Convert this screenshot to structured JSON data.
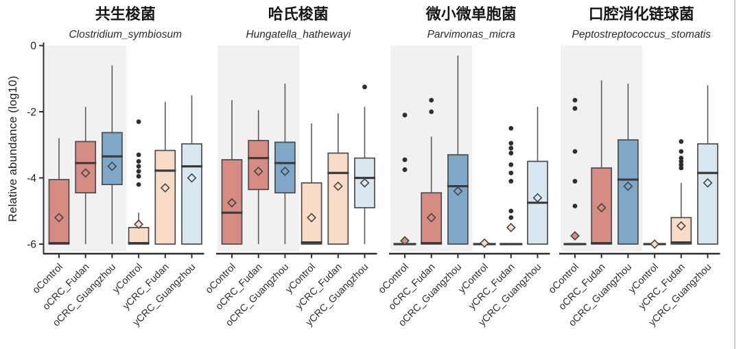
{
  "figure": {
    "ylabel": "Relative abundance (log10)",
    "y_ticks": [
      "0",
      "-2",
      "-4",
      "-6"
    ],
    "group_styles": [
      "salmon",
      "salmon",
      "blue",
      "peach",
      "peach",
      "lightblue"
    ],
    "colors": {
      "salmon": "#d68c82",
      "blue": "#7fa8c8",
      "peach": "#f9dcc8",
      "lightblue": "#d9e7f0",
      "band": "#f1f1f1",
      "box_border": "#4a4a4a",
      "median": "#3a3a3a",
      "whisker": "#5a5a5a",
      "outlier": "#2e2e2e",
      "axis": "#2f2f2f"
    }
  },
  "chart_data": [
    {
      "type": "box",
      "title": "共生梭菌",
      "species": "Clostridium_symbiosum",
      "ylim": [
        -6,
        0
      ],
      "categories": [
        "oControl",
        "oCRC_Fudan",
        "oCRC_Guangzhou",
        "yControl",
        "yCRC_Fudan",
        "yCRC_Guangzhou"
      ],
      "boxes": [
        {
          "group": "oControl",
          "q1": -6,
          "q3": -4.05,
          "median": -5.97,
          "whisker_low": -6,
          "whisker_high": -2.8,
          "mean": -5.2,
          "outliers": []
        },
        {
          "group": "oCRC_Fudan",
          "q1": -4.45,
          "q3": -2.9,
          "median": -3.55,
          "whisker_low": -6,
          "whisker_high": -1.85,
          "mean": -3.85,
          "outliers": []
        },
        {
          "group": "oCRC_Guangzhou",
          "q1": -4.2,
          "q3": -2.63,
          "median": -3.35,
          "whisker_low": -6,
          "whisker_high": -0.6,
          "mean": -3.65,
          "outliers": []
        },
        {
          "group": "yControl",
          "q1": -6,
          "q3": -5.5,
          "median": -5.97,
          "whisker_low": -6,
          "whisker_high": -5.05,
          "mean": -5.4,
          "outliers": [
            -2.3,
            -3.3,
            -3.5,
            -3.65,
            -3.8,
            -3.95,
            -4.2
          ]
        },
        {
          "group": "yCRC_Fudan",
          "q1": -6,
          "q3": -3.17,
          "median": -3.78,
          "whisker_low": -6,
          "whisker_high": -1.7,
          "mean": -4.3,
          "outliers": []
        },
        {
          "group": "yCRC_Guangzhou",
          "q1": -6,
          "q3": -2.97,
          "median": -3.65,
          "whisker_low": -6,
          "whisker_high": -1.5,
          "mean": -4.0,
          "outliers": []
        }
      ]
    },
    {
      "type": "box",
      "title": "哈氏梭菌",
      "species": "Hungatella_hathewayi",
      "ylim": [
        -6,
        0
      ],
      "categories": [
        "oControl",
        "oCRC_Fudan",
        "oCRC_Guangzhou",
        "yControl",
        "yCRC_Fudan",
        "yCRC_Guangzhou"
      ],
      "boxes": [
        {
          "group": "oControl",
          "q1": -6,
          "q3": -3.45,
          "median": -5.05,
          "whisker_low": -6,
          "whisker_high": -1.65,
          "mean": -4.75,
          "outliers": []
        },
        {
          "group": "oCRC_Fudan",
          "q1": -4.35,
          "q3": -2.87,
          "median": -3.4,
          "whisker_low": -6,
          "whisker_high": -1.95,
          "mean": -3.8,
          "outliers": []
        },
        {
          "group": "oCRC_Guangzhou",
          "q1": -4.45,
          "q3": -2.92,
          "median": -3.55,
          "whisker_low": -6,
          "whisker_high": -1.15,
          "mean": -3.8,
          "outliers": []
        },
        {
          "group": "yControl",
          "q1": -6,
          "q3": -4.15,
          "median": -5.95,
          "whisker_low": -6,
          "whisker_high": -2.35,
          "mean": -5.2,
          "outliers": []
        },
        {
          "group": "yCRC_Fudan",
          "q1": -6,
          "q3": -3.25,
          "median": -3.85,
          "whisker_low": -6,
          "whisker_high": -2.05,
          "mean": -4.25,
          "outliers": []
        },
        {
          "group": "yCRC_Guangzhou",
          "q1": -4.9,
          "q3": -3.4,
          "median": -4.0,
          "whisker_low": -6,
          "whisker_high": -1.85,
          "mean": -4.15,
          "outliers": [
            -1.25
          ]
        }
      ]
    },
    {
      "type": "box",
      "title": "微小微单胞菌",
      "species": "Parvimonas_micra",
      "ylim": [
        -6,
        0
      ],
      "categories": [
        "oControl",
        "oCRC_Fudan",
        "oCRC_Guangzhou",
        "yControl",
        "yCRC_Fudan",
        "yCRC_Guangzhou"
      ],
      "boxes": [
        {
          "group": "oControl",
          "q1": -6,
          "q3": -6,
          "median": -6,
          "whisker_low": -6,
          "whisker_high": -6,
          "mean": -5.9,
          "outliers": [
            -2.1,
            -3.45,
            -3.75
          ]
        },
        {
          "group": "oCRC_Fudan",
          "q1": -6,
          "q3": -4.45,
          "median": -5.97,
          "whisker_low": -6,
          "whisker_high": -2.75,
          "mean": -5.2,
          "outliers": [
            -1.65,
            -2.0
          ]
        },
        {
          "group": "oCRC_Guangzhou",
          "q1": -6,
          "q3": -3.3,
          "median": -4.25,
          "whisker_low": -6,
          "whisker_high": -0.3,
          "mean": -4.4,
          "outliers": []
        },
        {
          "group": "yControl",
          "q1": -6,
          "q3": -6,
          "median": -6,
          "whisker_low": -6,
          "whisker_high": -6,
          "mean": -5.97,
          "outliers": []
        },
        {
          "group": "yCRC_Fudan",
          "q1": -6,
          "q3": -6,
          "median": -6,
          "whisker_low": -6,
          "whisker_high": -6,
          "mean": -5.5,
          "outliers": [
            -2.5,
            -2.95,
            -3.1,
            -3.25,
            -3.6,
            -3.85,
            -4.1,
            -5.0,
            -5.2
          ]
        },
        {
          "group": "yCRC_Guangzhou",
          "q1": -6,
          "q3": -3.5,
          "median": -4.75,
          "whisker_low": -6,
          "whisker_high": -1.85,
          "mean": -4.6,
          "outliers": []
        }
      ]
    },
    {
      "type": "box",
      "title": "口腔消化链球菌",
      "species": "Peptostreptococcus_stomatis",
      "ylim": [
        -6,
        0
      ],
      "categories": [
        "oControl",
        "oCRC_Fudan",
        "oCRC_Guangzhou",
        "yControl",
        "yCRC_Fudan",
        "yCRC_Guangzhou"
      ],
      "boxes": [
        {
          "group": "oControl",
          "q1": -6,
          "q3": -6,
          "median": -6,
          "whisker_low": -6,
          "whisker_high": -6,
          "mean": -5.75,
          "outliers": [
            -1.65,
            -1.9,
            -3.2,
            -4.1,
            -4.85
          ]
        },
        {
          "group": "oCRC_Fudan",
          "q1": -6,
          "q3": -3.7,
          "median": -5.97,
          "whisker_low": -6,
          "whisker_high": -1.05,
          "mean": -4.9,
          "outliers": []
        },
        {
          "group": "oCRC_Guangzhou",
          "q1": -6,
          "q3": -2.85,
          "median": -4.05,
          "whisker_low": -6,
          "whisker_high": -1.15,
          "mean": -4.25,
          "outliers": []
        },
        {
          "group": "yControl",
          "q1": -6,
          "q3": -6,
          "median": -6,
          "whisker_low": -6,
          "whisker_high": -6,
          "mean": -6.0,
          "outliers": []
        },
        {
          "group": "yCRC_Fudan",
          "q1": -6,
          "q3": -5.2,
          "median": -5.95,
          "whisker_low": -6,
          "whisker_high": -4.15,
          "mean": -5.45,
          "outliers": [
            -2.9,
            -3.2,
            -3.4,
            -3.5,
            -3.6,
            -3.7
          ]
        },
        {
          "group": "yCRC_Guangzhou",
          "q1": -6,
          "q3": -2.97,
          "median": -3.85,
          "whisker_low": -6,
          "whisker_high": -1.2,
          "mean": -4.15,
          "outliers": []
        }
      ]
    }
  ]
}
